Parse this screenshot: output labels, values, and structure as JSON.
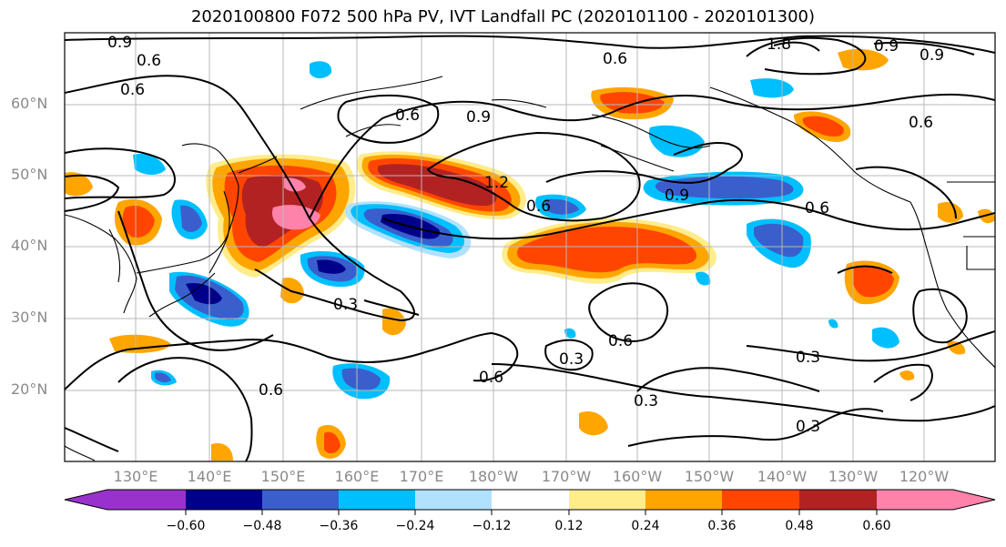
{
  "title": "2020100800 F072 500 hPa PV, IVT Landfall PC (2020101100 - 2020101300)",
  "lat_labels": [
    "60°N",
    "50°N",
    "40°N",
    "30°N",
    "20°N"
  ],
  "lon_labels": [
    "130°E",
    "140°E",
    "150°E",
    "160°E",
    "170°E",
    "180°W",
    "170°W",
    "160°W",
    "150°W",
    "140°W",
    "130°W",
    "120°W"
  ],
  "colorbar": {
    "ticks": [
      "−0.60",
      "−0.48",
      "−0.36",
      "−0.24",
      "−0.12",
      "0.12",
      "0.24",
      "0.36",
      "0.48",
      "0.60"
    ],
    "colors": [
      "#9932cc",
      "#00008b",
      "#3a5fcd",
      "#00bfff",
      "#b0e2ff",
      "#ffffff",
      "#ffec8b",
      "#ffa500",
      "#ff4500",
      "#b22222",
      "#ff82ab"
    ]
  },
  "contour_labels": [
    "0.9",
    "0.6",
    "0.6",
    "0.6",
    "0.9",
    "1.2",
    "0.6",
    "0.9",
    "0.6",
    "0.6",
    "0.9",
    "0.3",
    "0.3",
    "0.6",
    "0.6",
    "0.3",
    "0.6",
    "0.3",
    "0.3",
    "1.8",
    "0.9",
    "0.6"
  ]
}
